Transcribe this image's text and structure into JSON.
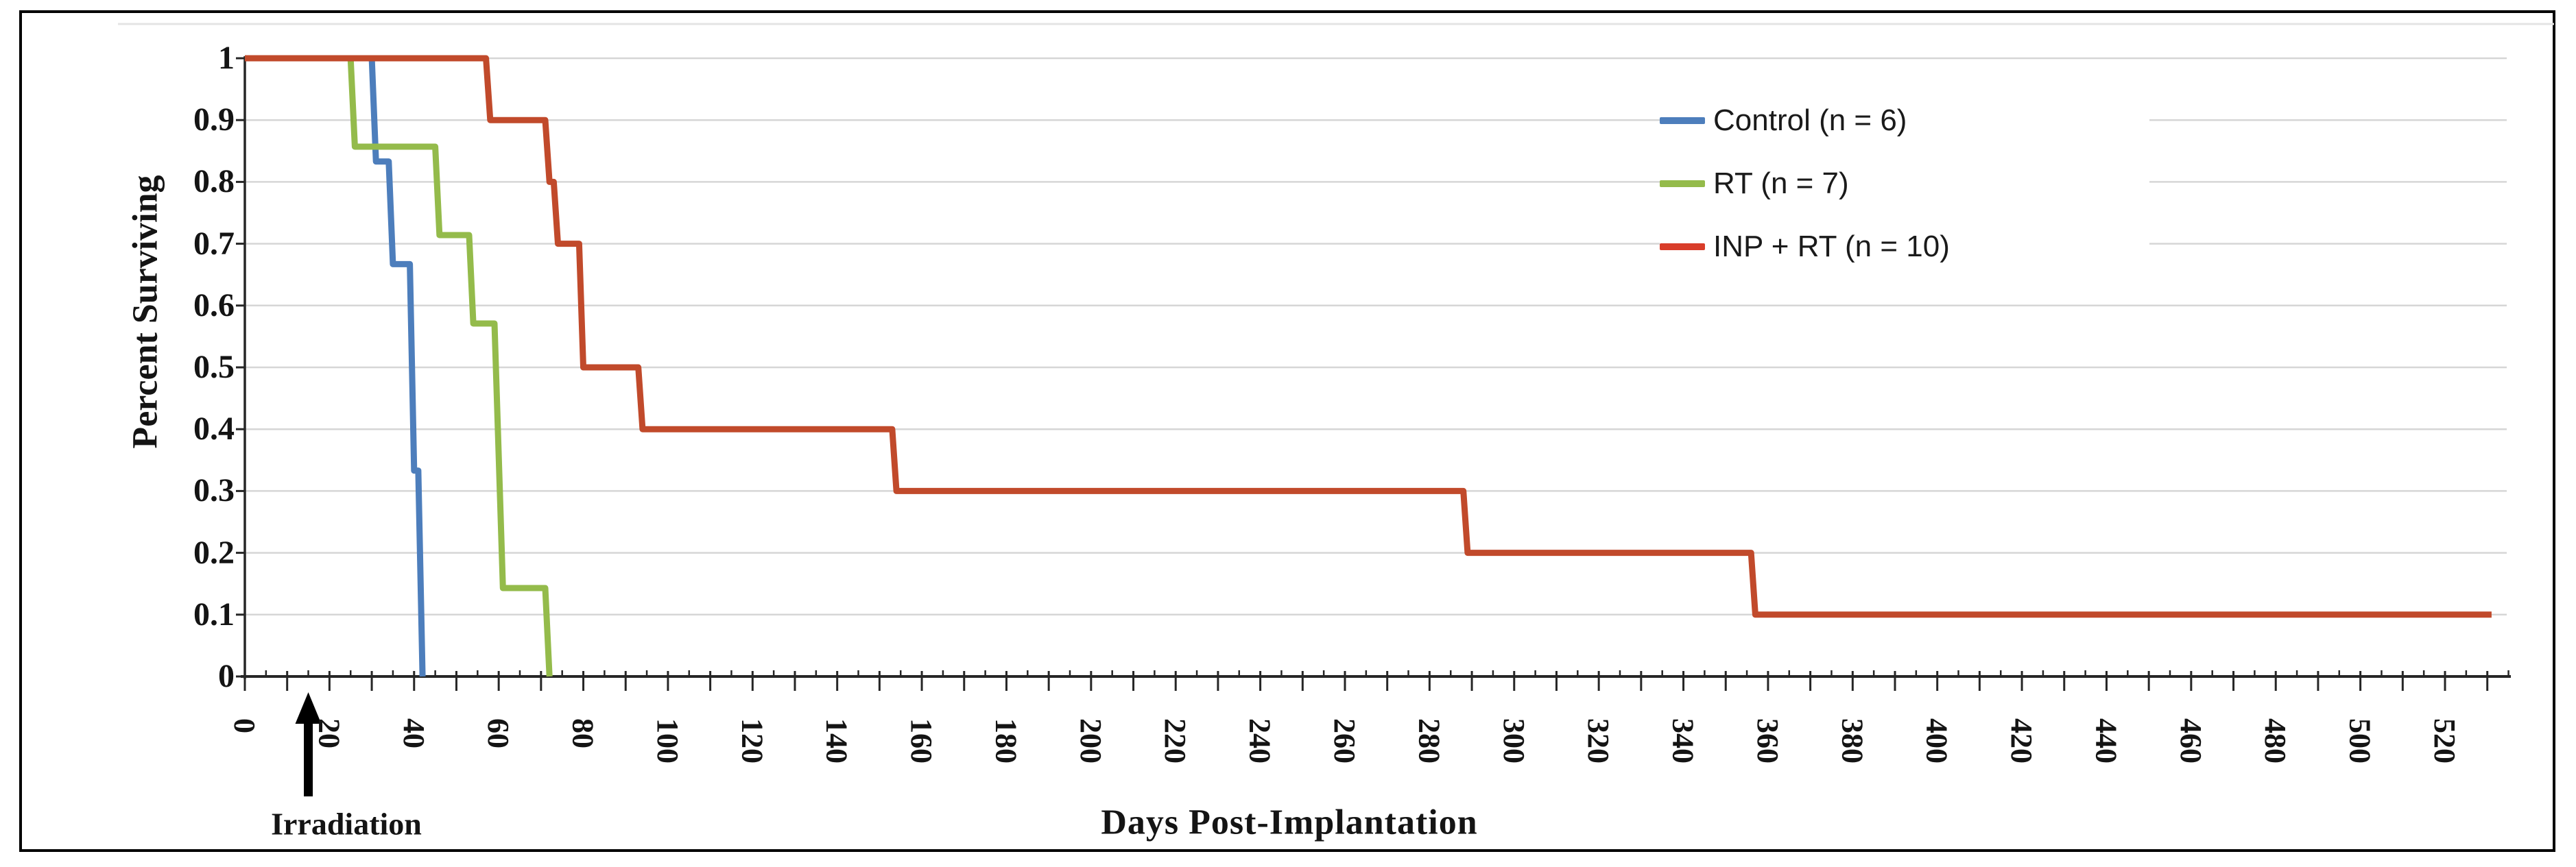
{
  "chart_data": {
    "type": "line",
    "subtype": "kaplan-meier-survival-steps",
    "title": "",
    "xlabel": "Days Post-Implantation",
    "ylabel": "Percent Surviving",
    "xlim": [
      0,
      532
    ],
    "ylim": [
      0,
      1
    ],
    "grid": "horizontal",
    "x_tick_interval": 20,
    "x_minor_tick_interval": 10,
    "x_tick_labels": [
      "0",
      "20",
      "40",
      "60",
      "80",
      "100",
      "120",
      "140",
      "160",
      "180",
      "200",
      "220",
      "240",
      "260",
      "280",
      "300",
      "320",
      "340",
      "360",
      "380",
      "400",
      "420",
      "440",
      "460",
      "480",
      "500",
      "520"
    ],
    "x_tick_values": [
      0,
      20,
      40,
      60,
      80,
      100,
      120,
      140,
      160,
      180,
      200,
      220,
      240,
      260,
      280,
      300,
      320,
      340,
      360,
      380,
      400,
      420,
      440,
      460,
      480,
      500,
      520
    ],
    "y_tick_labels": [
      "1",
      "0.9",
      "0.8",
      "0.7",
      "0.6",
      "0.5",
      "0.4",
      "0.3",
      "0.2",
      "0.1",
      "0"
    ],
    "y_tick_values": [
      1,
      0.9,
      0.8,
      0.7,
      0.6,
      0.5,
      0.4,
      0.3,
      0.2,
      0.1,
      0
    ],
    "legend": {
      "position": "top-right-inside",
      "entries": [
        {
          "label": "Control (n = 6)",
          "color": "#4d7ebc"
        },
        {
          "label": "RT (n = 7)",
          "color": "#94bb4b"
        },
        {
          "label": "INP + RT (n = 10)",
          "color": "#d93d2a"
        }
      ]
    },
    "series": [
      {
        "name": "Control (n = 6)",
        "color": "#4d7ebc",
        "points": [
          [
            0,
            1
          ],
          [
            30,
            1
          ],
          [
            31,
            0.833
          ],
          [
            34,
            0.833
          ],
          [
            35,
            0.667
          ],
          [
            39,
            0.667
          ],
          [
            40,
            0.333
          ],
          [
            41,
            0.333
          ],
          [
            42,
            0
          ]
        ]
      },
      {
        "name": "RT (n = 7)",
        "color": "#94bb4b",
        "points": [
          [
            0,
            1
          ],
          [
            25,
            1
          ],
          [
            26,
            0.857
          ],
          [
            45,
            0.857
          ],
          [
            46,
            0.714
          ],
          [
            53,
            0.714
          ],
          [
            54,
            0.571
          ],
          [
            59,
            0.571
          ],
          [
            61,
            0.143
          ],
          [
            71,
            0.143
          ],
          [
            72,
            0
          ]
        ]
      },
      {
        "name": "INP + RT (n = 10)",
        "color": "#c14a2b",
        "points": [
          [
            0,
            1
          ],
          [
            57,
            1
          ],
          [
            58,
            0.9
          ],
          [
            71,
            0.9
          ],
          [
            72,
            0.8
          ],
          [
            73,
            0.8
          ],
          [
            74,
            0.7
          ],
          [
            79,
            0.7
          ],
          [
            80,
            0.5
          ],
          [
            93,
            0.5
          ],
          [
            94,
            0.4
          ],
          [
            153,
            0.4
          ],
          [
            154,
            0.3
          ],
          [
            288,
            0.3
          ],
          [
            289,
            0.2
          ],
          [
            356,
            0.2
          ],
          [
            357,
            0.1
          ],
          [
            531,
            0.1
          ]
        ]
      }
    ],
    "annotation": {
      "label": "Irradiation",
      "day": 15,
      "symbol": "up-arrow"
    },
    "colors": {
      "axis": "#262626",
      "gridline": "#d6d6d6",
      "text": "#141414"
    }
  }
}
